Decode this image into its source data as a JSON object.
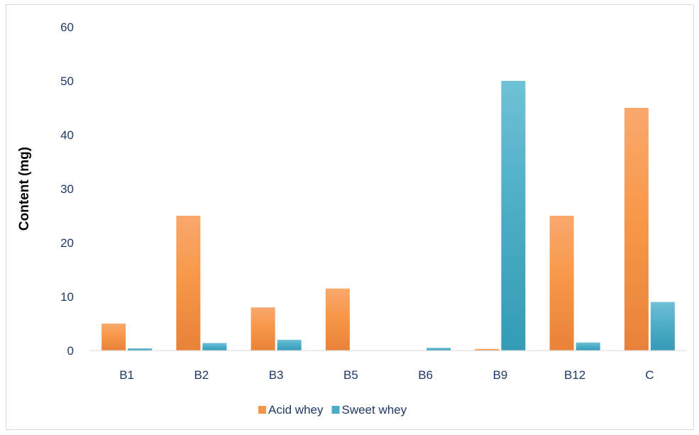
{
  "chart_data": {
    "type": "bar",
    "title": "",
    "xlabel": "",
    "ylabel": "Content (mg)",
    "categories": [
      "B1",
      "B2",
      "B3",
      "B5",
      "B6",
      "B9",
      "B12",
      "C"
    ],
    "series": [
      {
        "name": "Acid whey",
        "values": [
          5,
          25,
          8,
          11.5,
          0,
          0.3,
          25,
          45
        ],
        "color": "#f79646"
      },
      {
        "name": "Sweet whey",
        "values": [
          0.4,
          1.4,
          2,
          0,
          0.5,
          50,
          1.5,
          9
        ],
        "color": "#4bacc6"
      }
    ],
    "ylim": [
      0,
      60
    ],
    "yticks": [
      0,
      10,
      20,
      30,
      40,
      50,
      60
    ],
    "grid": false,
    "legend_position": "bottom"
  }
}
